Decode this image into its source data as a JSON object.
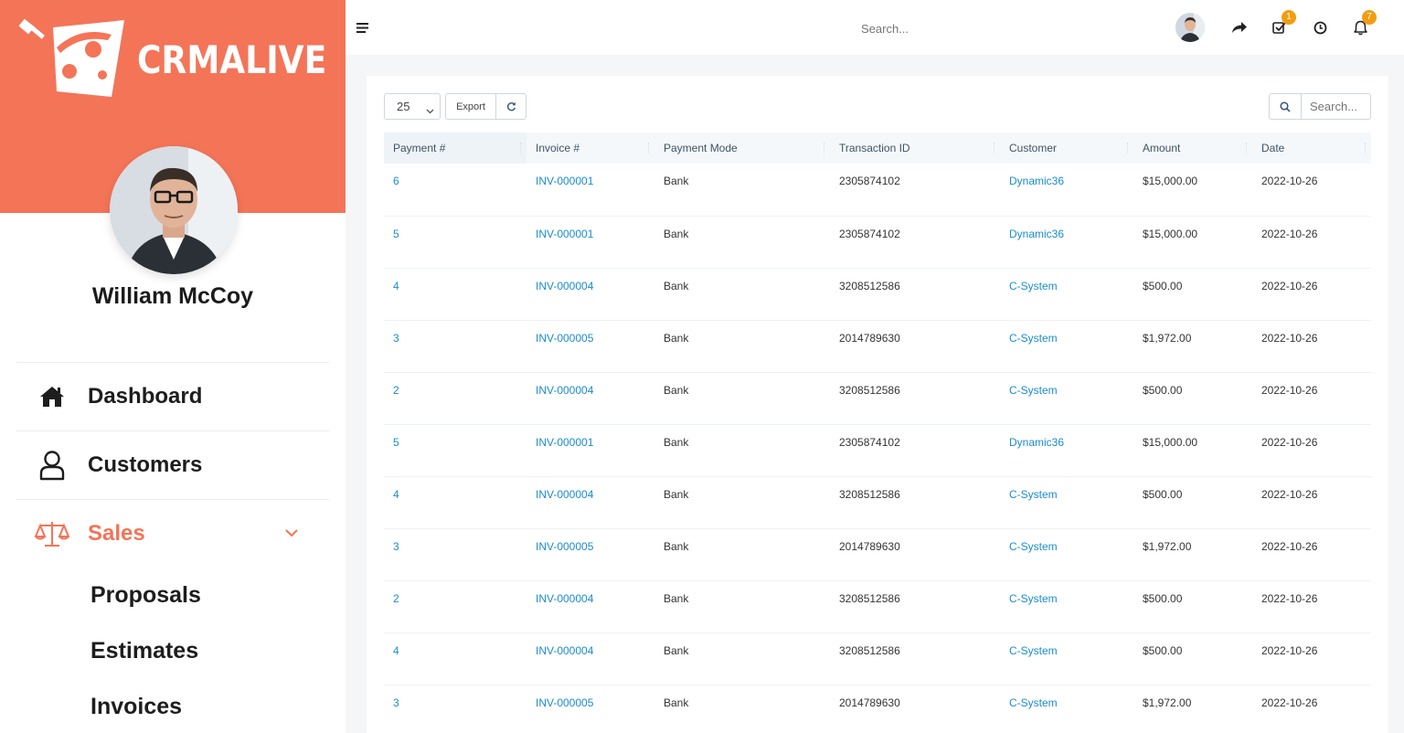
{
  "brand": {
    "name": "CRMALIVE",
    "accent": "#f47458",
    "link_color": "#1a8ccf"
  },
  "user": {
    "name": "William McCoy"
  },
  "nav": [
    {
      "label": "Dashboard",
      "icon": "home-icon"
    },
    {
      "label": "Customers",
      "icon": "user-icon"
    },
    {
      "label": "Sales",
      "icon": "scale-icon",
      "active": true,
      "expanded": true
    }
  ],
  "subnav": [
    "Proposals",
    "Estimates",
    "Invoices"
  ],
  "topbar": {
    "search_placeholder": "Search...",
    "tasks_badge": "1",
    "notifications_badge": "7"
  },
  "controls": {
    "page_size": "25",
    "export_label": "Export",
    "table_search_placeholder": "Search..."
  },
  "table": {
    "columns": [
      "Payment #",
      "Invoice #",
      "Payment Mode",
      "Transaction ID",
      "Customer",
      "Amount",
      "Date"
    ],
    "rows": [
      [
        "6",
        "INV-000001",
        "Bank",
        "2305874102",
        "Dynamic36",
        "$15,000.00",
        "2022-10-26"
      ],
      [
        "5",
        "INV-000001",
        "Bank",
        "2305874102",
        "Dynamic36",
        "$15,000.00",
        "2022-10-26"
      ],
      [
        "4",
        "INV-000004",
        "Bank",
        "3208512586",
        "C-System",
        "$500.00",
        "2022-10-26"
      ],
      [
        "3",
        "INV-000005",
        "Bank",
        "2014789630",
        "C-System",
        "$1,972.00",
        "2022-10-26"
      ],
      [
        "2",
        "INV-000004",
        "Bank",
        "3208512586",
        "C-System",
        "$500.00",
        "2022-10-26"
      ],
      [
        "5",
        "INV-000001",
        "Bank",
        "2305874102",
        "Dynamic36",
        "$15,000.00",
        "2022-10-26"
      ],
      [
        "4",
        "INV-000004",
        "Bank",
        "3208512586",
        "C-System",
        "$500.00",
        "2022-10-26"
      ],
      [
        "3",
        "INV-000005",
        "Bank",
        "2014789630",
        "C-System",
        "$1,972.00",
        "2022-10-26"
      ],
      [
        "2",
        "INV-000004",
        "Bank",
        "3208512586",
        "C-System",
        "$500.00",
        "2022-10-26"
      ],
      [
        "4",
        "INV-000004",
        "Bank",
        "3208512586",
        "C-System",
        "$500.00",
        "2022-10-26"
      ],
      [
        "3",
        "INV-000005",
        "Bank",
        "2014789630",
        "C-System",
        "$1,972.00",
        "2022-10-26"
      ]
    ]
  }
}
